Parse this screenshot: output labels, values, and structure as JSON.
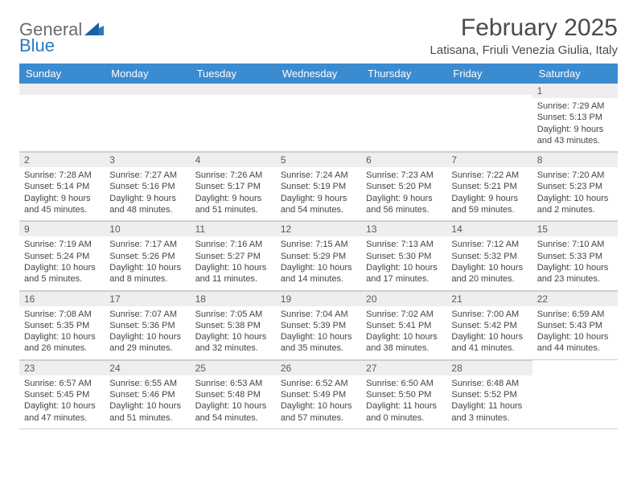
{
  "brand": {
    "part1": "General",
    "part2": "Blue"
  },
  "title": "February 2025",
  "location": "Latisana, Friuli Venezia Giulia, Italy",
  "colors": {
    "header_band": "#3b8bd0",
    "daynum_bg": "#eeeeee",
    "text": "#444444",
    "brand_gray": "#6a6a6a",
    "brand_blue": "#2b78c2"
  },
  "day_names": [
    "Sunday",
    "Monday",
    "Tuesday",
    "Wednesday",
    "Thursday",
    "Friday",
    "Saturday"
  ],
  "weeks": [
    [
      {
        "n": "",
        "sunrise": "",
        "sunset": "",
        "daylight": ""
      },
      {
        "n": "",
        "sunrise": "",
        "sunset": "",
        "daylight": ""
      },
      {
        "n": "",
        "sunrise": "",
        "sunset": "",
        "daylight": ""
      },
      {
        "n": "",
        "sunrise": "",
        "sunset": "",
        "daylight": ""
      },
      {
        "n": "",
        "sunrise": "",
        "sunset": "",
        "daylight": ""
      },
      {
        "n": "",
        "sunrise": "",
        "sunset": "",
        "daylight": ""
      },
      {
        "n": "1",
        "sunrise": "Sunrise: 7:29 AM",
        "sunset": "Sunset: 5:13 PM",
        "daylight": "Daylight: 9 hours and 43 minutes."
      }
    ],
    [
      {
        "n": "2",
        "sunrise": "Sunrise: 7:28 AM",
        "sunset": "Sunset: 5:14 PM",
        "daylight": "Daylight: 9 hours and 45 minutes."
      },
      {
        "n": "3",
        "sunrise": "Sunrise: 7:27 AM",
        "sunset": "Sunset: 5:16 PM",
        "daylight": "Daylight: 9 hours and 48 minutes."
      },
      {
        "n": "4",
        "sunrise": "Sunrise: 7:26 AM",
        "sunset": "Sunset: 5:17 PM",
        "daylight": "Daylight: 9 hours and 51 minutes."
      },
      {
        "n": "5",
        "sunrise": "Sunrise: 7:24 AM",
        "sunset": "Sunset: 5:19 PM",
        "daylight": "Daylight: 9 hours and 54 minutes."
      },
      {
        "n": "6",
        "sunrise": "Sunrise: 7:23 AM",
        "sunset": "Sunset: 5:20 PM",
        "daylight": "Daylight: 9 hours and 56 minutes."
      },
      {
        "n": "7",
        "sunrise": "Sunrise: 7:22 AM",
        "sunset": "Sunset: 5:21 PM",
        "daylight": "Daylight: 9 hours and 59 minutes."
      },
      {
        "n": "8",
        "sunrise": "Sunrise: 7:20 AM",
        "sunset": "Sunset: 5:23 PM",
        "daylight": "Daylight: 10 hours and 2 minutes."
      }
    ],
    [
      {
        "n": "9",
        "sunrise": "Sunrise: 7:19 AM",
        "sunset": "Sunset: 5:24 PM",
        "daylight": "Daylight: 10 hours and 5 minutes."
      },
      {
        "n": "10",
        "sunrise": "Sunrise: 7:17 AM",
        "sunset": "Sunset: 5:26 PM",
        "daylight": "Daylight: 10 hours and 8 minutes."
      },
      {
        "n": "11",
        "sunrise": "Sunrise: 7:16 AM",
        "sunset": "Sunset: 5:27 PM",
        "daylight": "Daylight: 10 hours and 11 minutes."
      },
      {
        "n": "12",
        "sunrise": "Sunrise: 7:15 AM",
        "sunset": "Sunset: 5:29 PM",
        "daylight": "Daylight: 10 hours and 14 minutes."
      },
      {
        "n": "13",
        "sunrise": "Sunrise: 7:13 AM",
        "sunset": "Sunset: 5:30 PM",
        "daylight": "Daylight: 10 hours and 17 minutes."
      },
      {
        "n": "14",
        "sunrise": "Sunrise: 7:12 AM",
        "sunset": "Sunset: 5:32 PM",
        "daylight": "Daylight: 10 hours and 20 minutes."
      },
      {
        "n": "15",
        "sunrise": "Sunrise: 7:10 AM",
        "sunset": "Sunset: 5:33 PM",
        "daylight": "Daylight: 10 hours and 23 minutes."
      }
    ],
    [
      {
        "n": "16",
        "sunrise": "Sunrise: 7:08 AM",
        "sunset": "Sunset: 5:35 PM",
        "daylight": "Daylight: 10 hours and 26 minutes."
      },
      {
        "n": "17",
        "sunrise": "Sunrise: 7:07 AM",
        "sunset": "Sunset: 5:36 PM",
        "daylight": "Daylight: 10 hours and 29 minutes."
      },
      {
        "n": "18",
        "sunrise": "Sunrise: 7:05 AM",
        "sunset": "Sunset: 5:38 PM",
        "daylight": "Daylight: 10 hours and 32 minutes."
      },
      {
        "n": "19",
        "sunrise": "Sunrise: 7:04 AM",
        "sunset": "Sunset: 5:39 PM",
        "daylight": "Daylight: 10 hours and 35 minutes."
      },
      {
        "n": "20",
        "sunrise": "Sunrise: 7:02 AM",
        "sunset": "Sunset: 5:41 PM",
        "daylight": "Daylight: 10 hours and 38 minutes."
      },
      {
        "n": "21",
        "sunrise": "Sunrise: 7:00 AM",
        "sunset": "Sunset: 5:42 PM",
        "daylight": "Daylight: 10 hours and 41 minutes."
      },
      {
        "n": "22",
        "sunrise": "Sunrise: 6:59 AM",
        "sunset": "Sunset: 5:43 PM",
        "daylight": "Daylight: 10 hours and 44 minutes."
      }
    ],
    [
      {
        "n": "23",
        "sunrise": "Sunrise: 6:57 AM",
        "sunset": "Sunset: 5:45 PM",
        "daylight": "Daylight: 10 hours and 47 minutes."
      },
      {
        "n": "24",
        "sunrise": "Sunrise: 6:55 AM",
        "sunset": "Sunset: 5:46 PM",
        "daylight": "Daylight: 10 hours and 51 minutes."
      },
      {
        "n": "25",
        "sunrise": "Sunrise: 6:53 AM",
        "sunset": "Sunset: 5:48 PM",
        "daylight": "Daylight: 10 hours and 54 minutes."
      },
      {
        "n": "26",
        "sunrise": "Sunrise: 6:52 AM",
        "sunset": "Sunset: 5:49 PM",
        "daylight": "Daylight: 10 hours and 57 minutes."
      },
      {
        "n": "27",
        "sunrise": "Sunrise: 6:50 AM",
        "sunset": "Sunset: 5:50 PM",
        "daylight": "Daylight: 11 hours and 0 minutes."
      },
      {
        "n": "28",
        "sunrise": "Sunrise: 6:48 AM",
        "sunset": "Sunset: 5:52 PM",
        "daylight": "Daylight: 11 hours and 3 minutes."
      },
      {
        "n": "",
        "sunrise": "",
        "sunset": "",
        "daylight": ""
      }
    ]
  ]
}
